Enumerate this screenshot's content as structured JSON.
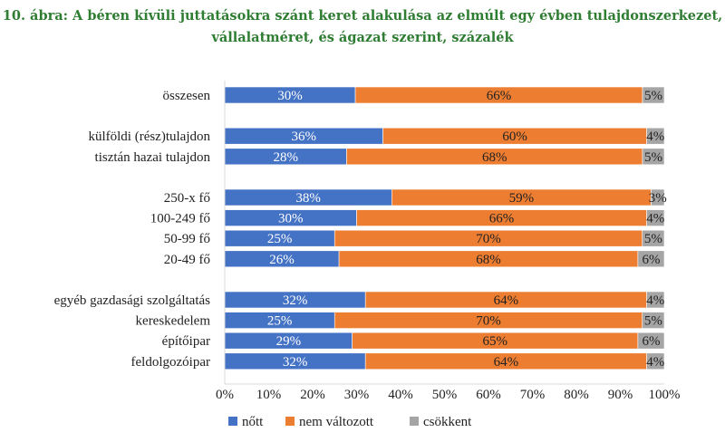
{
  "chart_data": {
    "type": "bar",
    "orientation": "horizontal",
    "stacked": true,
    "title": [
      "10. ábra: A béren kívüli juttatásokra szánt keret alakulása az elmúlt egy évben tulajdonszerkezet,",
      "vállalatméret, és ágazat szerint, százalék"
    ],
    "categories": [
      "összesen",
      "külföldi (rész)tulajdon",
      "tisztán hazai tulajdon",
      "250-x fő",
      "100-249 fő",
      "50-99 fő",
      "20-49 fő",
      "egyéb gazdasági szolgáltatás",
      "kereskedelem",
      "építőipar",
      "feldolgozóipar"
    ],
    "groups": [
      [
        0
      ],
      [
        1,
        2
      ],
      [
        3,
        4,
        5,
        6
      ],
      [
        7,
        8,
        9,
        10
      ]
    ],
    "series": [
      {
        "name": "nőtt",
        "color": "#4472c4",
        "label_color": "#ffffff",
        "values": [
          30,
          36,
          28,
          38,
          30,
          25,
          26,
          32,
          25,
          29,
          32
        ]
      },
      {
        "name": "nem változott",
        "color": "#ed7d31",
        "label_color": "#222222",
        "values": [
          66,
          60,
          68,
          59,
          66,
          70,
          68,
          64,
          70,
          65,
          64
        ]
      },
      {
        "name": "csökkent",
        "color": "#a5a5a5",
        "label_color": "#222222",
        "values": [
          5,
          4,
          5,
          3,
          4,
          5,
          6,
          4,
          5,
          6,
          4
        ]
      }
    ],
    "xlim": [
      0,
      100
    ],
    "xticks": [
      "0%",
      "10%",
      "20%",
      "30%",
      "40%",
      "50%",
      "60%",
      "70%",
      "80%",
      "90%",
      "100%"
    ],
    "value_suffix": "%",
    "legend_position": "bottom",
    "grid": false
  }
}
